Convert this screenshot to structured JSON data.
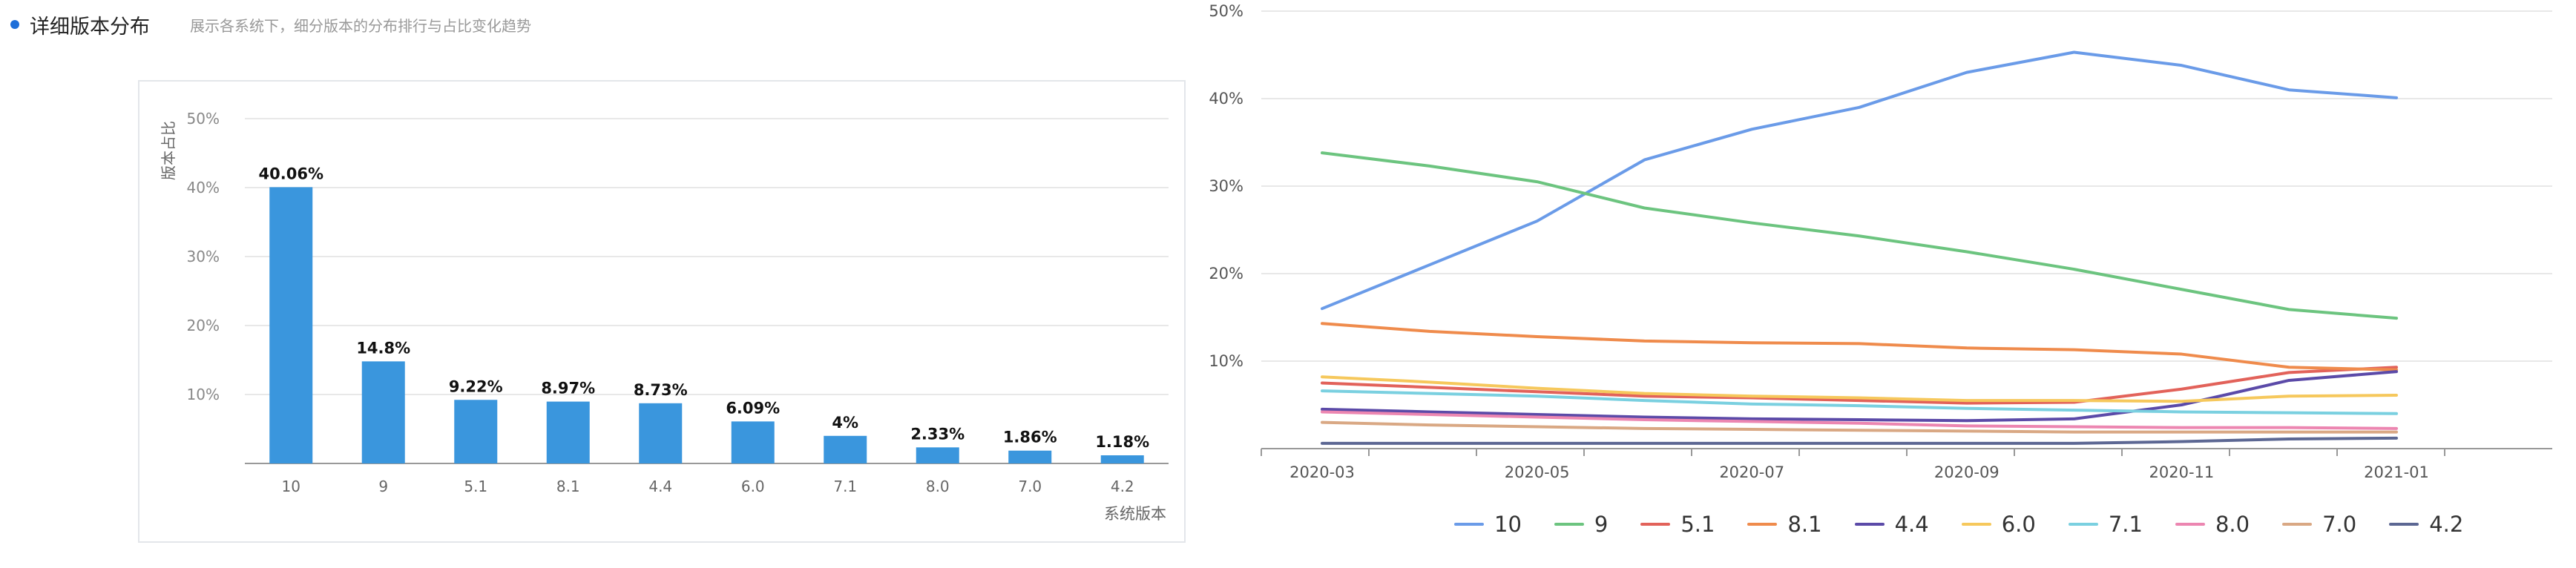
{
  "header": {
    "title": "详细版本分布",
    "description": "展示各系统下，细分版本的分布排行与占比变化趋势",
    "dot_color": "#1e6fd9"
  },
  "chart_data": [
    {
      "type": "bar",
      "title": "",
      "ylabel": "版本占比",
      "xlabel": "系统版本",
      "categories": [
        "10",
        "9",
        "5.1",
        "8.1",
        "4.4",
        "6.0",
        "7.1",
        "8.0",
        "7.0",
        "4.2"
      ],
      "values": [
        40.06,
        14.8,
        9.22,
        8.97,
        8.73,
        6.09,
        4,
        2.33,
        1.86,
        1.18
      ],
      "data_labels": [
        "40.06%",
        "14.8%",
        "9.22%",
        "8.97%",
        "8.73%",
        "6.09%",
        "4%",
        "2.33%",
        "1.86%",
        "1.18%"
      ],
      "y_ticks": [
        "10%",
        "20%",
        "30%",
        "40%",
        "50%"
      ],
      "ylim": [
        0,
        50
      ],
      "bar_color": "#3a96dd",
      "grid": true
    },
    {
      "type": "line",
      "title": "",
      "x": [
        "2020-03",
        "2020-04",
        "2020-05",
        "2020-06",
        "2020-07",
        "2020-08",
        "2020-09",
        "2020-10",
        "2020-11",
        "2020-12",
        "2021-01"
      ],
      "x_ticks": [
        "2020-03",
        "2020-05",
        "2020-07",
        "2020-09",
        "2020-11",
        "2021-01"
      ],
      "y_ticks": [
        "10%",
        "20%",
        "30%",
        "40%",
        "50%"
      ],
      "ylim": [
        0,
        50
      ],
      "grid": true,
      "legend_position": "bottom",
      "series": [
        {
          "name": "10",
          "color": "#6a9be8",
          "values": [
            16,
            21,
            26,
            33,
            36.5,
            39,
            43,
            45.3,
            43.8,
            41,
            40.1
          ]
        },
        {
          "name": "9",
          "color": "#6cc47f",
          "values": [
            33.8,
            32.3,
            30.5,
            27.5,
            25.8,
            24.3,
            22.5,
            20.5,
            18.2,
            15.9,
            14.9
          ]
        },
        {
          "name": "5.1",
          "color": "#e2625a",
          "values": [
            7.5,
            7,
            6.5,
            6,
            5.8,
            5.5,
            5.2,
            5.3,
            6.8,
            8.7,
            9.3
          ]
        },
        {
          "name": "8.1",
          "color": "#ef8b4c",
          "values": [
            14.3,
            13.4,
            12.8,
            12.3,
            12.1,
            12,
            11.5,
            11.3,
            10.8,
            9.3,
            9
          ]
        },
        {
          "name": "4.4",
          "color": "#5b4aa8",
          "values": [
            4.5,
            4.2,
            3.9,
            3.6,
            3.4,
            3.3,
            3.2,
            3.4,
            5,
            7.8,
            8.8
          ]
        },
        {
          "name": "6.0",
          "color": "#f6c85c",
          "values": [
            8.2,
            7.6,
            6.9,
            6.3,
            6,
            5.8,
            5.5,
            5.5,
            5.4,
            6,
            6.1
          ]
        },
        {
          "name": "7.1",
          "color": "#7ad0e0",
          "values": [
            6.6,
            6.3,
            6,
            5.5,
            5.1,
            4.9,
            4.6,
            4.4,
            4.2,
            4.1,
            4
          ]
        },
        {
          "name": "8.0",
          "color": "#ec86b1",
          "values": [
            4.2,
            3.9,
            3.6,
            3.3,
            3.1,
            2.9,
            2.6,
            2.5,
            2.4,
            2.4,
            2.3
          ]
        },
        {
          "name": "7.0",
          "color": "#d9a884",
          "values": [
            3,
            2.7,
            2.5,
            2.3,
            2.2,
            2.1,
            2,
            1.9,
            1.9,
            1.9,
            1.9
          ]
        },
        {
          "name": "4.2",
          "color": "#5c6793",
          "values": [
            0.6,
            0.6,
            0.6,
            0.6,
            0.6,
            0.6,
            0.6,
            0.6,
            0.8,
            1.1,
            1.2
          ]
        }
      ]
    }
  ]
}
